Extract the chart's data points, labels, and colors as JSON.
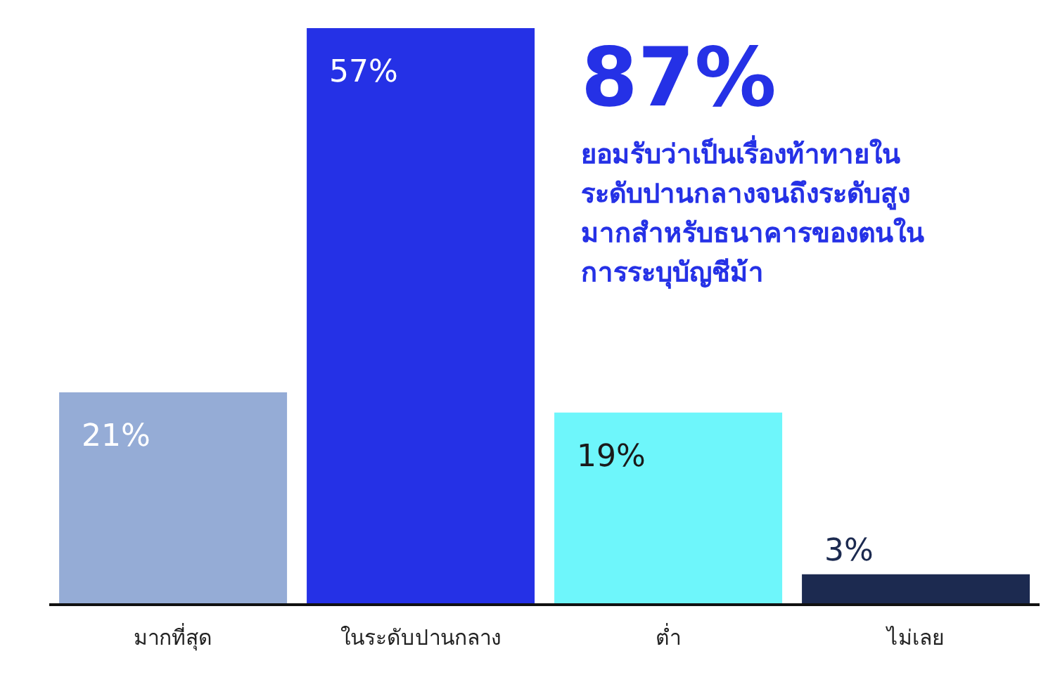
{
  "chart_data": {
    "type": "bar",
    "categories": [
      "มากที่สุด",
      "ในระดับปานกลาง",
      "ต่ำ",
      "ไม่เลย"
    ],
    "values": [
      21,
      57,
      19,
      3
    ],
    "colors": [
      "#95acd6",
      "#2531e6",
      "#6ef6fb",
      "#1c2a50"
    ],
    "value_labels": [
      "21%",
      "57%",
      "19%",
      "3%"
    ],
    "annotations": [
      "87%",
      "ยอมรับว่าเป็นเรื่องท้าทายในระดับปานกลางจนถึงระดับสูงมากสำหรับธนาคารของตนในการระบุบัญชีม้า"
    ],
    "grid": false,
    "legend": false
  }
}
